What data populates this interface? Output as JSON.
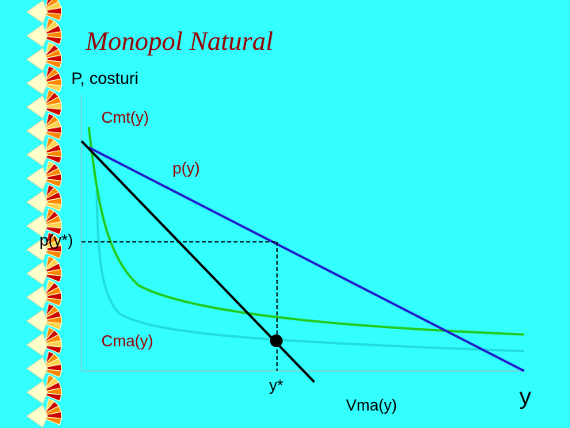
{
  "title": "Monopol Natural",
  "y_axis_label": "P, costuri",
  "x_axis_label": "y",
  "curves": {
    "cmt": {
      "label": "Cmt(y)",
      "color": "#22cc22"
    },
    "demand": {
      "label": "p(y)",
      "color": "#2222cc"
    },
    "cma": {
      "label": "Cma(y)",
      "color": "#22dddd"
    },
    "vma": {
      "label": "Vma(y)",
      "color": "#000000"
    }
  },
  "equilibrium": {
    "price_label": "p(y*)",
    "quantity_label": "y*"
  },
  "colors": {
    "background": "#33ffff",
    "title": "#990000",
    "fan_red": "#cc0000",
    "fan_orange": "#ff8800",
    "fan_yellow": "#ffd24d",
    "fan_cream": "#ffffcc"
  }
}
